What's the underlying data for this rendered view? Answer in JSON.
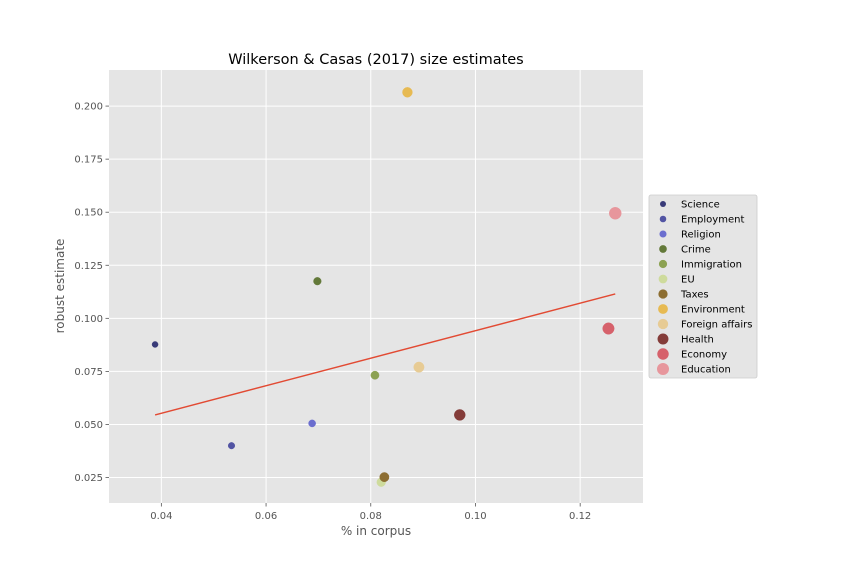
{
  "chart_data": {
    "type": "scatter",
    "title": "Wilkerson & Casas (2017) size estimates",
    "xlabel": "% in corpus",
    "ylabel": "robust estimate",
    "xlim": [
      0.03,
      0.132
    ],
    "ylim": [
      0.013,
      0.217
    ],
    "xticks": [
      0.04,
      0.06,
      0.08,
      0.1,
      0.12
    ],
    "xtick_labels": [
      "0.04",
      "0.06",
      "0.08",
      "0.10",
      "0.12"
    ],
    "yticks": [
      0.025,
      0.05,
      0.075,
      0.1,
      0.125,
      0.15,
      0.175,
      0.2
    ],
    "ytick_labels": [
      "0.025",
      "0.050",
      "0.075",
      "0.100",
      "0.125",
      "0.150",
      "0.175",
      "0.200"
    ],
    "grid": true,
    "legend_position": "right",
    "background": "#e5e5e5",
    "series": [
      {
        "name": "Science",
        "x": 0.0388,
        "y": 0.0877,
        "color": "#393b79"
      },
      {
        "name": "Employment",
        "x": 0.0534,
        "y": 0.04,
        "color": "#5254a3"
      },
      {
        "name": "Religion",
        "x": 0.0688,
        "y": 0.0505,
        "color": "#6b6ecf"
      },
      {
        "name": "Crime",
        "x": 0.0698,
        "y": 0.1175,
        "color": "#637939"
      },
      {
        "name": "Immigration",
        "x": 0.0808,
        "y": 0.0732,
        "color": "#8ca252"
      },
      {
        "name": "EU",
        "x": 0.082,
        "y": 0.0228,
        "color": "#cedb9c"
      },
      {
        "name": "Taxes",
        "x": 0.0826,
        "y": 0.0252,
        "color": "#8c6d31"
      },
      {
        "name": "Environment",
        "x": 0.087,
        "y": 0.2065,
        "color": "#e7ba52"
      },
      {
        "name": "Foreign affairs",
        "x": 0.0892,
        "y": 0.077,
        "color": "#e7cb94"
      },
      {
        "name": "Health",
        "x": 0.097,
        "y": 0.0545,
        "color": "#843c39"
      },
      {
        "name": "Economy",
        "x": 0.1254,
        "y": 0.0952,
        "color": "#d6616b"
      },
      {
        "name": "Education",
        "x": 0.1267,
        "y": 0.1495,
        "color": "#e7969c"
      }
    ],
    "trend_line": {
      "x": [
        0.0388,
        0.1267
      ],
      "y": [
        0.0545,
        0.1115
      ],
      "color": "#e24a33"
    }
  }
}
